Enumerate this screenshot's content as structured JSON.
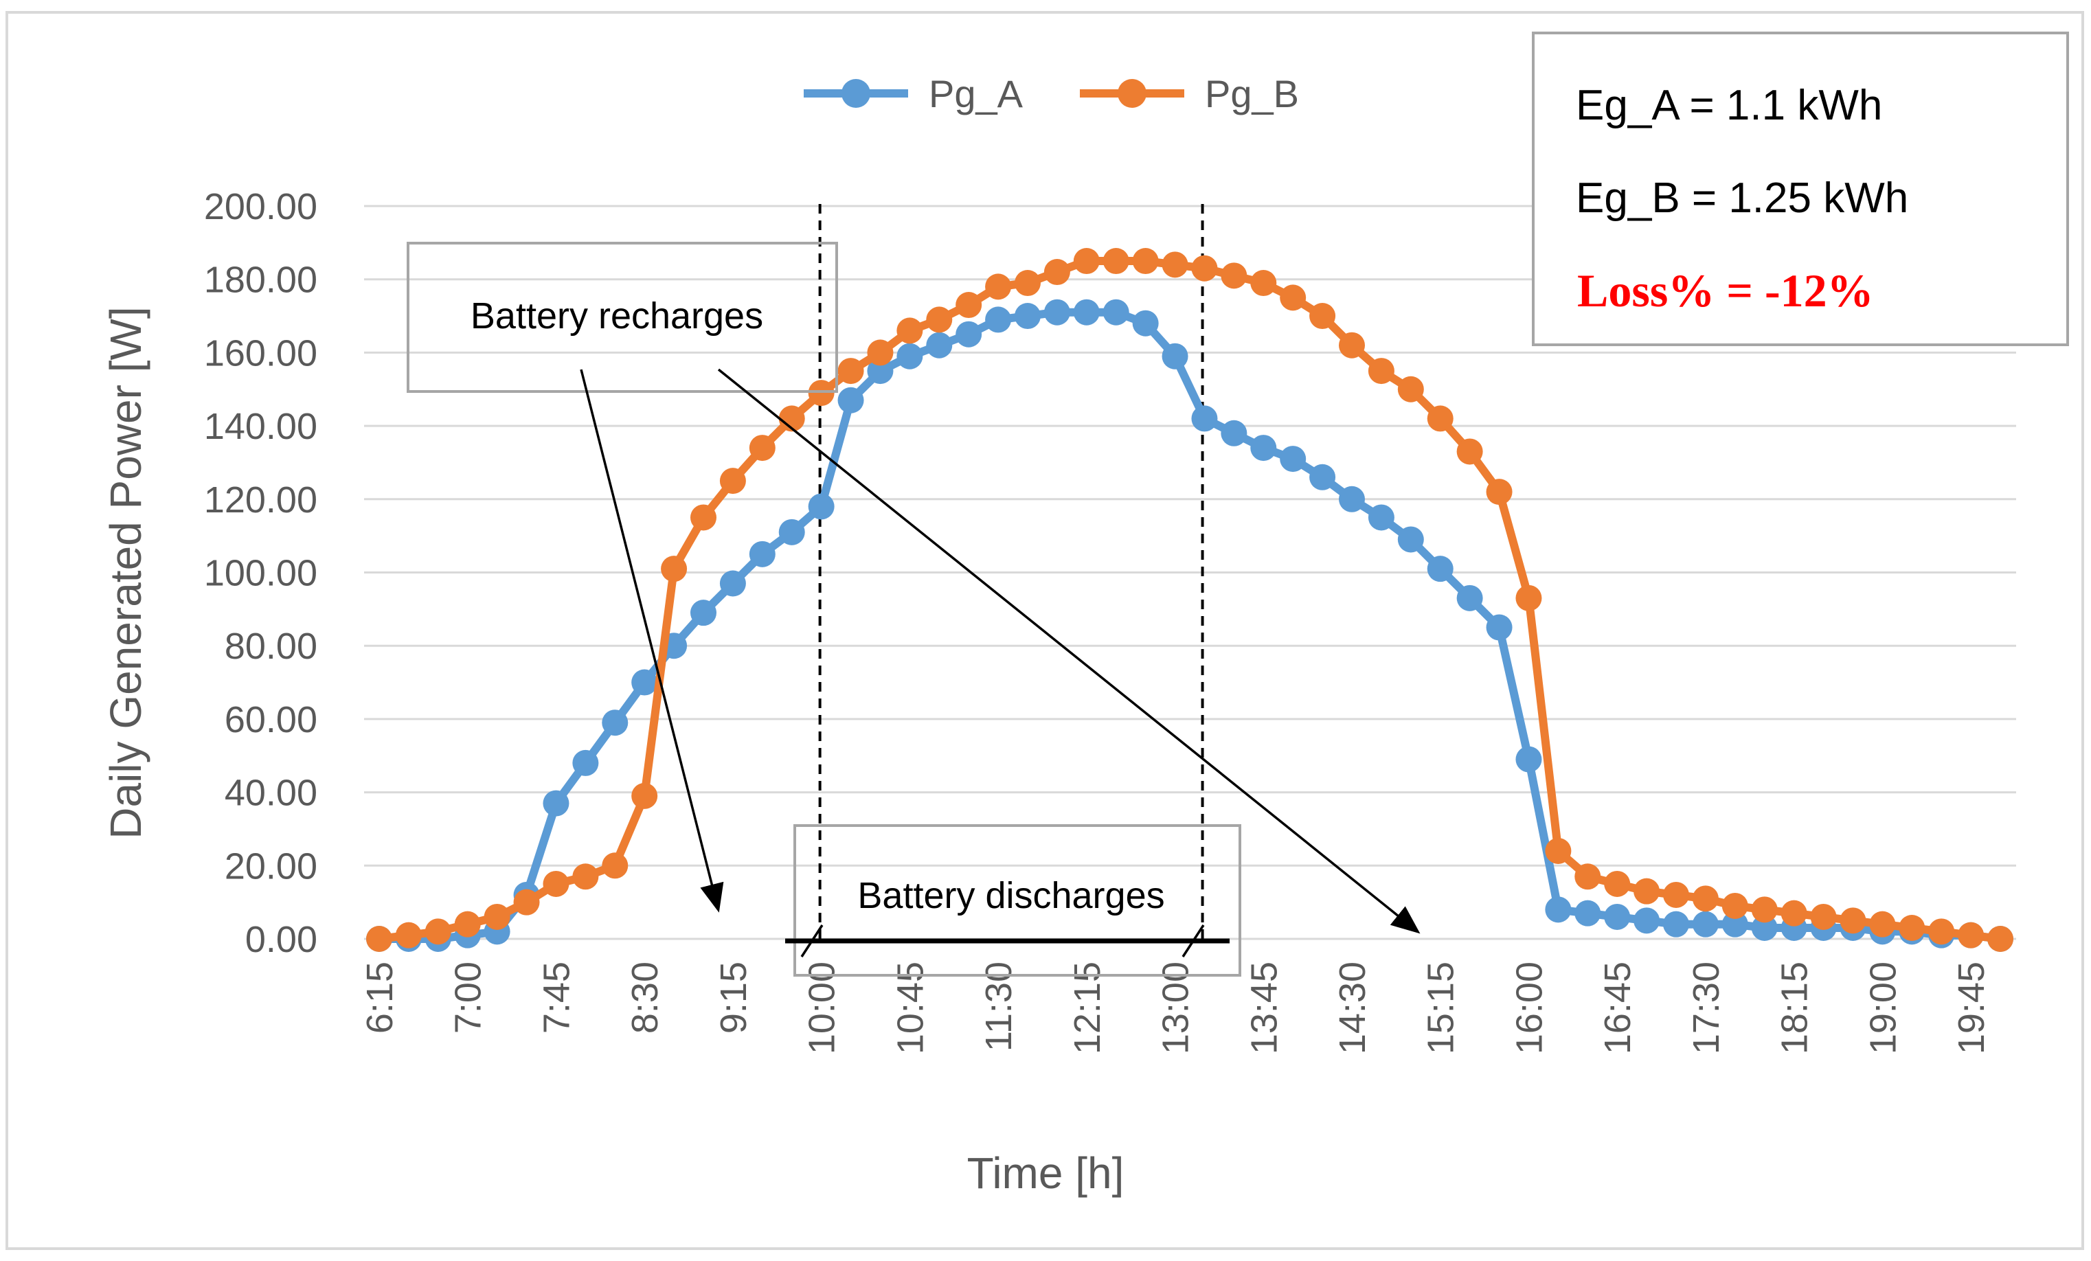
{
  "chart_data": {
    "type": "line",
    "title": "",
    "xlabel": "Time [h]",
    "ylabel": "Daily Generated Power [W]",
    "ylim": [
      0,
      200
    ],
    "y_ticks": [
      "0.00",
      "20.00",
      "40.00",
      "60.00",
      "80.00",
      "100.00",
      "120.00",
      "140.00",
      "160.00",
      "180.00",
      "200.00"
    ],
    "grid": true,
    "legend_position": "top-center",
    "x_tick_labels": [
      "6:15",
      "7:00",
      "7:45",
      "8:30",
      "9:15",
      "10:00",
      "10:45",
      "11:30",
      "12:15",
      "13:00",
      "13:45",
      "14:30",
      "15:15",
      "16:00",
      "16:45",
      "17:30",
      "18:15",
      "19:00",
      "19:45"
    ],
    "categories": [
      "6:15",
      "6:30",
      "6:45",
      "7:00",
      "7:15",
      "7:30",
      "7:45",
      "8:00",
      "8:15",
      "8:30",
      "8:45",
      "9:00",
      "9:15",
      "9:30",
      "9:45",
      "10:00",
      "10:15",
      "10:30",
      "10:45",
      "11:00",
      "11:15",
      "11:30",
      "11:45",
      "12:00",
      "12:15",
      "12:30",
      "12:45",
      "13:00",
      "13:15",
      "13:30",
      "13:45",
      "14:00",
      "14:15",
      "14:30",
      "14:45",
      "15:00",
      "15:15",
      "15:30",
      "15:45",
      "16:00",
      "16:15",
      "16:30",
      "16:45",
      "17:00",
      "17:15",
      "17:30",
      "17:45",
      "18:00",
      "18:15",
      "18:30",
      "18:45",
      "19:00",
      "19:15",
      "19:30",
      "19:45",
      "20:00"
    ],
    "series": [
      {
        "name": "Pg_A",
        "color": "#5b9bd5",
        "values": [
          0,
          0,
          0,
          1,
          2,
          12,
          37,
          48,
          59,
          70,
          80,
          89,
          97,
          105,
          111,
          118,
          147,
          155,
          159,
          162,
          165,
          169,
          170,
          171,
          171,
          171,
          168,
          159,
          142,
          138,
          134,
          131,
          126,
          120,
          115,
          109,
          101,
          93,
          85,
          49,
          8,
          7,
          6,
          5,
          4,
          4,
          4,
          3,
          3,
          3,
          3,
          2,
          2,
          1,
          1,
          0
        ]
      },
      {
        "name": "Pg_B",
        "color": "#ed7d31",
        "values": [
          0,
          1,
          2,
          4,
          6,
          10,
          15,
          17,
          20,
          39,
          101,
          115,
          125,
          134,
          142,
          149,
          155,
          160,
          166,
          169,
          173,
          178,
          179,
          182,
          185,
          185,
          185,
          184,
          183,
          181,
          179,
          175,
          170,
          162,
          155,
          150,
          142,
          133,
          122,
          93,
          24,
          17,
          15,
          13,
          12,
          11,
          9,
          8,
          7,
          6,
          5,
          4,
          3,
          2,
          1,
          0
        ]
      }
    ],
    "annotations": {
      "recharge_label": "Battery recharges",
      "discharge_label": "Battery discharges",
      "discharge_start": "10:00",
      "discharge_end": "13:00"
    }
  },
  "info_box": {
    "line1": "Eg_A = 1.1 kWh",
    "line2": "Eg_B = 1.25 kWh",
    "line3": "Loss% = -12%"
  }
}
